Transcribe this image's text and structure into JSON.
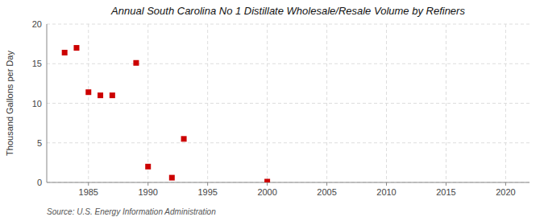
{
  "chart_data": {
    "type": "scatter",
    "title": "Annual South Carolina No 1 Distillate Wholesale/Resale Volume by Refiners",
    "y_label": "Thousand Gallons per Day",
    "annotation": "Source: U.S. Energy Information Administration",
    "x": [
      1983,
      1984,
      1985,
      1986,
      1987,
      1989,
      1990,
      1992,
      1993,
      2000
    ],
    "values": [
      16.4,
      17.0,
      11.4,
      11.0,
      11.0,
      15.1,
      2.0,
      0.6,
      5.5,
      0.1
    ],
    "color": "#cc0000",
    "marker": "square",
    "xlim": [
      1981.5,
      2022
    ],
    "ylim": [
      0,
      20
    ],
    "xticks": [
      1985,
      1990,
      1995,
      2000,
      2005,
      2010,
      2015,
      2020
    ],
    "yticks": [
      0,
      5,
      10,
      15,
      20
    ],
    "grid": true
  }
}
